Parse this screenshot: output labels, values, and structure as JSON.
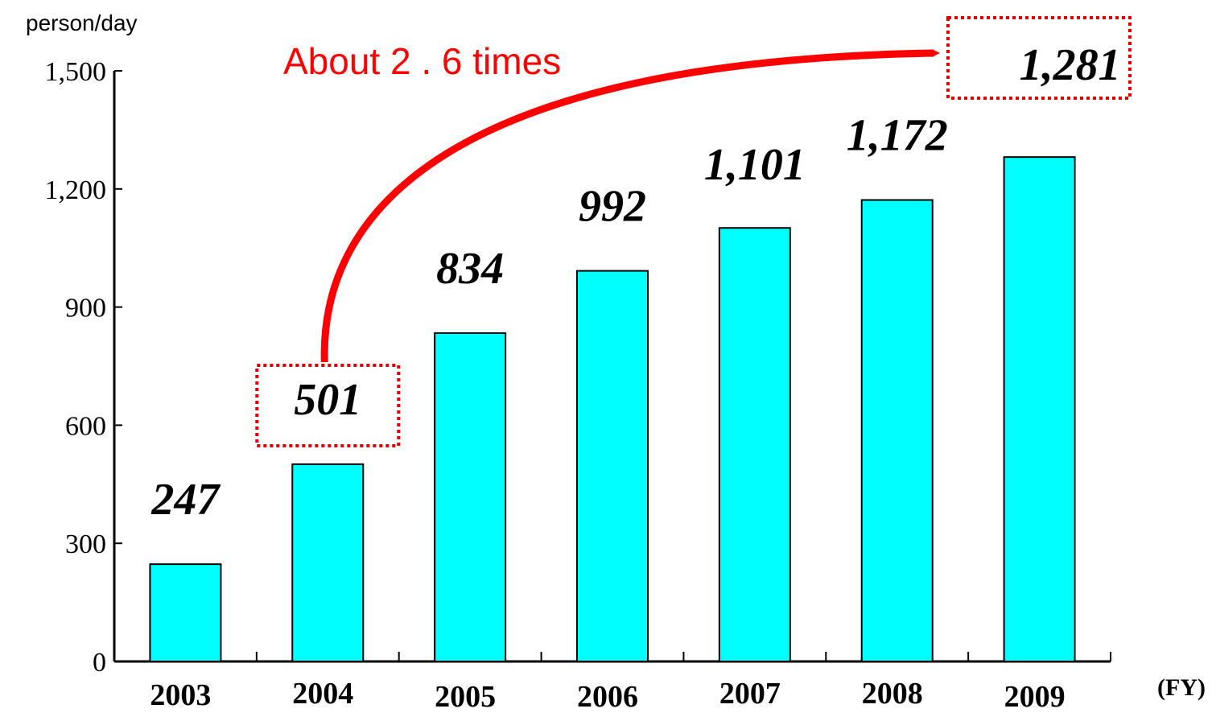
{
  "chart_data": {
    "type": "bar",
    "categories": [
      "2003",
      "2004",
      "2005",
      "2006",
      "2007",
      "2008",
      "2009"
    ],
    "values": [
      247,
      501,
      834,
      992,
      1101,
      1172,
      1281
    ],
    "data_labels": [
      "247",
      "501",
      "834",
      "992",
      "1,101",
      "1,172",
      "1,281"
    ],
    "title": "",
    "xlabel": "(FY)",
    "ylabel": "person/day",
    "ylim": [
      0,
      1500
    ],
    "yticks": [
      0,
      300,
      600,
      900,
      1200,
      1500
    ],
    "ytick_labels": [
      "0",
      "300",
      "600",
      "900",
      "1,200",
      "1,500"
    ],
    "grid": false,
    "legend": "none",
    "annotation": {
      "text": "About 2 . 6 times",
      "from_category": "2004",
      "to_category": "2009"
    }
  },
  "colors": {
    "bar": "#00ffff",
    "bar_border": "#000000",
    "annotation": "#ff0000",
    "highlight_box": "#dd0000"
  }
}
